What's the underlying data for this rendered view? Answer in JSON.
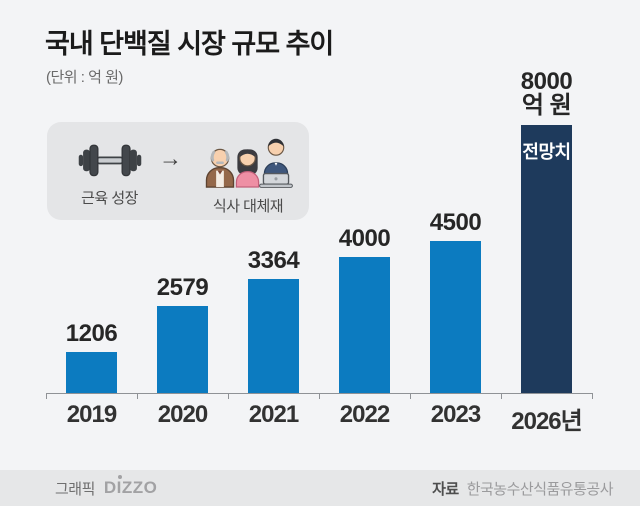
{
  "header": {
    "title": "국내 단백질 시장 규모 추이",
    "unit_label": "(단위 : 억 원)"
  },
  "legend": {
    "muscle_label": "근육 성장",
    "arrow": "→",
    "meal_label": "식사 대체재"
  },
  "chart_data": {
    "type": "bar",
    "title": "국내 단백질 시장 규모 추이",
    "unit": "억 원",
    "categories": [
      "2019",
      "2020",
      "2021",
      "2022",
      "2023",
      "2026년"
    ],
    "values": [
      1206,
      2579,
      3364,
      4000,
      4500,
      8000
    ],
    "bar_value_labels": [
      "1206",
      "2579",
      "3364",
      "4000",
      "4500",
      "8000\n억 원"
    ],
    "in_bar_labels": [
      "",
      "",
      "",
      "",
      "",
      "전망치"
    ],
    "highlight_index": 5,
    "bar_color": "#0c7bc0",
    "highlight_color": "#1e3a5c",
    "xlabel": "",
    "ylabel": "",
    "ylim": [
      0,
      8000
    ],
    "grid": false,
    "legend_position": "none"
  },
  "footer": {
    "graphic_label": "그래픽",
    "logo": "DIZZO",
    "source_label": "자료",
    "source_value": "한국농수산식품유통공사"
  }
}
